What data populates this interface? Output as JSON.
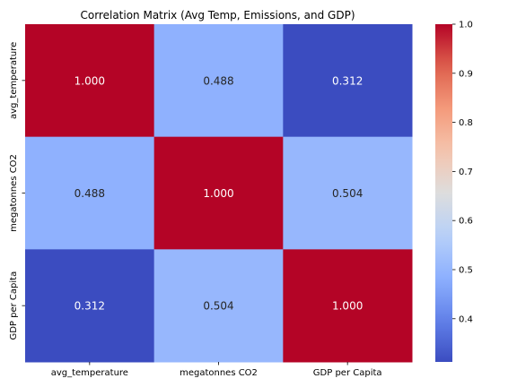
{
  "chart_data": {
    "type": "heatmap",
    "title": "Correlation Matrix (Avg Temp, Emissions, and GDP)",
    "row_labels": [
      "avg_temperature",
      "megatonnes CO2",
      "GDP per Capita"
    ],
    "col_labels": [
      "avg_temperature",
      "megatonnes CO2",
      "GDP per Capita"
    ],
    "values": [
      [
        1.0,
        0.488,
        0.312
      ],
      [
        0.488,
        1.0,
        0.504
      ],
      [
        0.312,
        0.504,
        1.0
      ]
    ],
    "cell_labels": [
      [
        "1.000",
        "0.488",
        "0.312"
      ],
      [
        "0.488",
        "1.000",
        "0.504"
      ],
      [
        "0.312",
        "0.504",
        "1.000"
      ]
    ],
    "colormap": "coolwarm",
    "colorbar": {
      "range": [
        0.312,
        1.0
      ],
      "ticks": [
        0.4,
        0.5,
        0.6,
        0.7,
        0.8,
        0.9,
        1.0
      ],
      "tick_labels": [
        "0.4",
        "0.5",
        "0.6",
        "0.7",
        "0.8",
        "0.9",
        "1.0"
      ]
    }
  }
}
